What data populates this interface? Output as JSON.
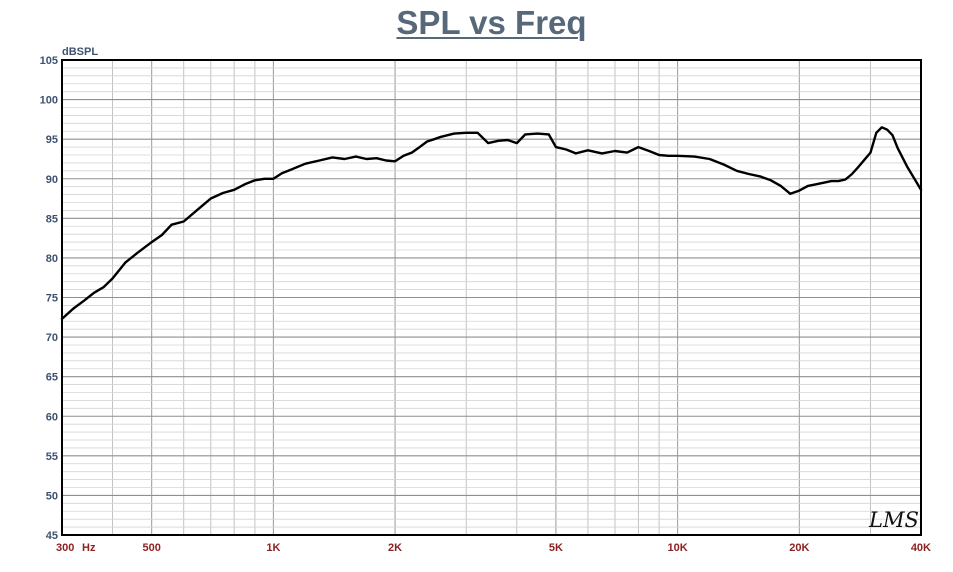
{
  "chart_data": {
    "type": "line",
    "title": "SPL vs Freq",
    "ylabel": "dBSPL",
    "xlabel": "",
    "x_scale": "log",
    "xlim": [
      300,
      40000
    ],
    "ylim": [
      45,
      105
    ],
    "grid": true,
    "y_ticks": [
      45,
      50,
      55,
      60,
      65,
      70,
      75,
      80,
      85,
      90,
      95,
      100,
      105
    ],
    "x_tick_labels": [
      {
        "value": 300,
        "label": "300"
      },
      {
        "value": 500,
        "label": "500"
      },
      {
        "value": 1000,
        "label": "1K"
      },
      {
        "value": 2000,
        "label": "2K"
      },
      {
        "value": 5000,
        "label": "5K"
      },
      {
        "value": 10000,
        "label": "10K"
      },
      {
        "value": 20000,
        "label": "20K"
      },
      {
        "value": 40000,
        "label": "40K"
      }
    ],
    "x_unit_label": "Hz",
    "line_color": "#000000",
    "series": [
      {
        "x": [
          300,
          320,
          340,
          360,
          380,
          400,
          430,
          460,
          500,
          530,
          560,
          600,
          650,
          700,
          750,
          800,
          850,
          900,
          950,
          1000,
          1050,
          1100,
          1200,
          1300,
          1400,
          1500,
          1600,
          1700,
          1800,
          1900,
          2000,
          2100,
          2200,
          2300,
          2400,
          2500,
          2600,
          2800,
          3000,
          3200,
          3400,
          3600,
          3800,
          4000,
          4200,
          4500,
          4800,
          5000,
          5300,
          5600,
          6000,
          6500,
          7000,
          7500,
          8000,
          8500,
          9000,
          9500,
          10000,
          11000,
          12000,
          13000,
          14000,
          15000,
          16000,
          17000,
          18000,
          19000,
          20000,
          21000,
          22000,
          23000,
          24000,
          25000,
          26000,
          27000,
          28000,
          29000,
          30000,
          31000,
          32000,
          33000,
          34000,
          35000,
          37000,
          40000
        ],
        "values": [
          72.3,
          73.6,
          74.6,
          75.6,
          76.3,
          77.4,
          79.4,
          80.6,
          82.0,
          82.9,
          84.2,
          84.6,
          86.1,
          87.5,
          88.2,
          88.6,
          89.3,
          89.8,
          90.0,
          90.0,
          90.7,
          91.1,
          91.9,
          92.3,
          92.7,
          92.5,
          92.8,
          92.5,
          92.6,
          92.3,
          92.2,
          92.9,
          93.3,
          94.0,
          94.7,
          95.0,
          95.3,
          95.7,
          95.8,
          95.8,
          94.5,
          94.8,
          94.9,
          94.5,
          95.6,
          95.7,
          95.6,
          94.0,
          93.7,
          93.2,
          93.6,
          93.2,
          93.5,
          93.3,
          94.0,
          93.5,
          93.0,
          92.9,
          92.9,
          92.8,
          92.5,
          91.8,
          91.0,
          90.6,
          90.3,
          89.8,
          89.1,
          88.1,
          88.5,
          89.1,
          89.3,
          89.5,
          89.7,
          89.7,
          89.9,
          90.6,
          91.5,
          92.4,
          93.3,
          95.8,
          96.5,
          96.2,
          95.5,
          93.9,
          91.5,
          88.6
        ]
      }
    ]
  },
  "watermark": "LMS"
}
